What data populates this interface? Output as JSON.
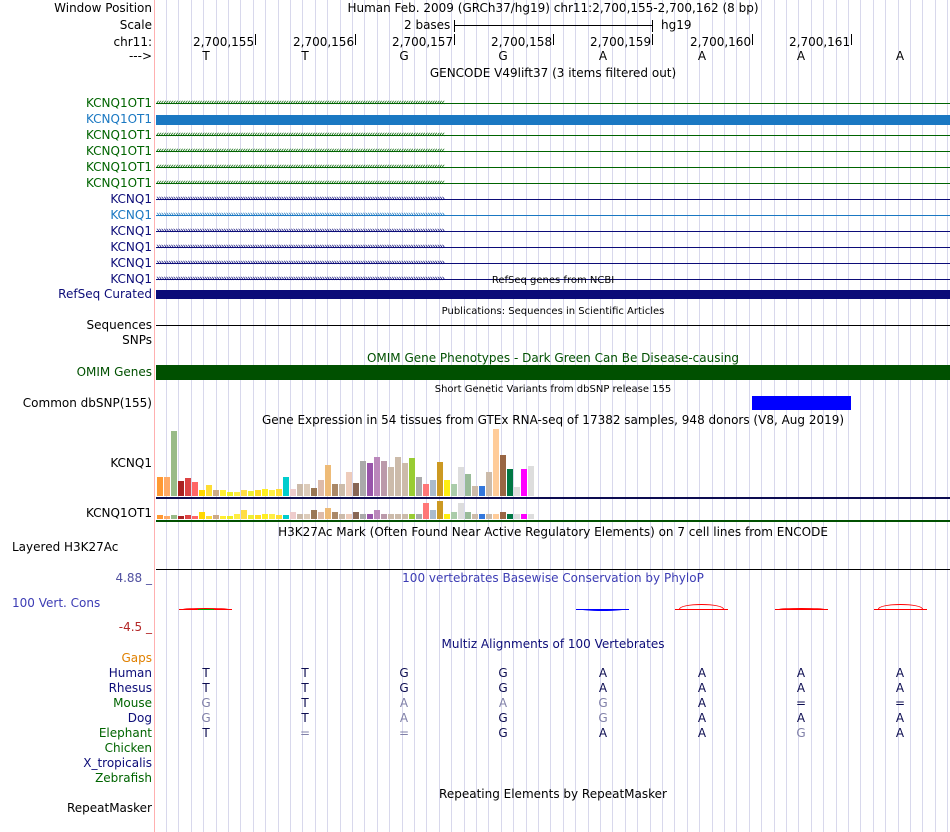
{
  "header": {
    "window_position_label": "Window Position",
    "window_position_value": "Human Feb. 2009 (GRCh37/hg19)   chr11:2,700,155-2,700,162 (8 bp)",
    "scale_label": "Scale",
    "scale_value": "2 bases",
    "assembly": "hg19",
    "chrom_label": "chr11:",
    "strand_label": "--->",
    "positions": [
      "2,700,155",
      "2,700,156",
      "2,700,157",
      "2,700,158",
      "2,700,159",
      "2,700,160",
      "2,700,161"
    ],
    "ref_bases": [
      "T",
      "T",
      "G",
      "G",
      "A",
      "A",
      "A",
      "A"
    ]
  },
  "gencode": {
    "title": "GENCODE V49lift37 (3 items filtered out)",
    "tracks": [
      {
        "name": "KCNQ1OT1",
        "strand": "minus",
        "style": "arrows",
        "color": "#006400"
      },
      {
        "name": "KCNQ1OT1",
        "strand": "minus",
        "style": "block",
        "color": "#1a78c2"
      },
      {
        "name": "KCNQ1OT1",
        "strand": "minus",
        "style": "arrows",
        "color": "#006400"
      },
      {
        "name": "KCNQ1OT1",
        "strand": "minus",
        "style": "arrows",
        "color": "#006400"
      },
      {
        "name": "KCNQ1OT1",
        "strand": "minus",
        "style": "arrows",
        "color": "#006400"
      },
      {
        "name": "KCNQ1OT1",
        "strand": "minus",
        "style": "arrows",
        "color": "#006400"
      },
      {
        "name": "KCNQ1",
        "strand": "plus",
        "style": "arrows",
        "color": "#0c0c78"
      },
      {
        "name": "KCNQ1",
        "strand": "plus",
        "style": "arrows",
        "color": "#1a78c2"
      },
      {
        "name": "KCNQ1",
        "strand": "plus",
        "style": "arrows",
        "color": "#0c0c78"
      },
      {
        "name": "KCNQ1",
        "strand": "plus",
        "style": "arrows",
        "color": "#0c0c78"
      },
      {
        "name": "KCNQ1",
        "strand": "plus",
        "style": "arrows",
        "color": "#0c0c78"
      },
      {
        "name": "KCNQ1",
        "strand": "plus",
        "style": "arrows",
        "color": "#0c0c78"
      }
    ]
  },
  "refseq": {
    "title": "RefSeq genes from NCBI",
    "label": "RefSeq Curated",
    "color": "#0c0c78"
  },
  "publications": {
    "title": "Publications: Sequences in Scientific Articles",
    "label": "Sequences"
  },
  "snps_label": "SNPs",
  "omim": {
    "title": "OMIM Gene Phenotypes - Dark Green Can Be Disease-causing",
    "label": "OMIM Genes",
    "color": "#005000"
  },
  "dbsnp": {
    "title": "Short Genetic Variants from dbSNP release 155",
    "label": "Common dbSNP(155)",
    "color": "#0000ff",
    "variant_base_index": 6
  },
  "gtex": {
    "title": "Gene Expression in 54 tissues from GTEx RNA-seq of 17382 samples, 948 donors (V8, Aug 2019)",
    "genes": [
      {
        "name": "KCNQ1",
        "values": [
          0.28,
          0.28,
          0.95,
          0.22,
          0.26,
          0.2,
          0.09,
          0.16,
          0.09,
          0.09,
          0.06,
          0.06,
          0.09,
          0.08,
          0.09,
          0.1,
          0.09,
          0.1,
          0.28,
          0.1,
          0.17,
          0.17,
          0.12,
          0.24,
          0.45,
          0.18,
          0.17,
          0.36,
          0.19,
          0.51,
          0.48,
          0.57,
          0.51,
          0.42,
          0.58,
          0.48,
          0.56,
          0.28,
          0.17,
          0.24,
          0.5,
          0.24,
          0.17,
          0.43,
          0.33,
          0.15,
          0.15,
          0.35,
          0.98,
          0.61,
          0.4,
          0.13,
          0.4,
          0.44
        ]
      },
      {
        "name": "KCNQ1OT1",
        "values": [
          0.2,
          0.15,
          0.2,
          0.15,
          0.2,
          0.15,
          0.4,
          0.15,
          0.2,
          0.15,
          0.15,
          0.3,
          0.5,
          0.2,
          0.2,
          0.3,
          0.3,
          0.2,
          0.2,
          0.4,
          0.3,
          0.3,
          0.5,
          0.4,
          0.6,
          0.4,
          0.3,
          0.3,
          0.4,
          0.3,
          0.3,
          0.5,
          0.3,
          0.3,
          0.3,
          0.3,
          0.3,
          0.3,
          0.9,
          0.5,
          1.0,
          0.3,
          0.4,
          0.9,
          0.4,
          0.3,
          0.3,
          0.3,
          0.3,
          0.4,
          0.3,
          0.3,
          0.3,
          0.3
        ]
      }
    ],
    "colors": [
      "#ff9933",
      "#ffaa66",
      "#99bb88",
      "#aa2222",
      "#dd4444",
      "#ff6666",
      "#ffd700",
      "#ffdd33",
      "#ccaa88",
      "#ffee33",
      "#eeee22",
      "#ffee44",
      "#ffdd44",
      "#eeee33",
      "#ffdd22",
      "#ffee22",
      "#ffee44",
      "#ffdd33",
      "#00cdcd",
      "#eecccc",
      "#ccbbaa",
      "#ddccbb",
      "#997755",
      "#ddbbaa",
      "#eebb77",
      "#aa8866",
      "#ccbbaa",
      "#eeccbb",
      "#886655",
      "#aaaaaa",
      "#9955aa",
      "#bb88bb",
      "#bb99aa",
      "#ccbbaa",
      "#ccbbaa",
      "#ccbbaa",
      "#99cc33",
      "#aaaaaa",
      "#ff7777",
      "#aabbcc",
      "#cc9922",
      "#ffee11",
      "#aaccaa",
      "#dddddd",
      "#99bb99",
      "#ccbbaa",
      "#3377dd",
      "#ccbbaa",
      "#ffcc99",
      "#996644",
      "#007744",
      "#dddddd",
      "#ff00ff",
      "#dddddd"
    ]
  },
  "h3k27ac": {
    "title": "H3K27Ac Mark (Often Found Near Active Regulatory Elements) on 7 cell lines from ENCODE",
    "label": "Layered H3K27Ac"
  },
  "conservation": {
    "title": "100 vertebrates Basewise Conservation by PhyloP",
    "label": "100 Vert. Cons",
    "max_label": "4.88 _",
    "min_label": "-4.5 _",
    "scores": [
      0.1,
      0,
      0,
      0,
      -0.3,
      1.0,
      0.15,
      1.0
    ],
    "pos_color": "#ff0000",
    "neg_color": "#0000ff"
  },
  "multiz": {
    "title": "Multiz Alignments of 100 Vertebrates",
    "gaps_label": "Gaps",
    "species": [
      {
        "name": "Human",
        "color": "#0c0c78",
        "bases": [
          "T",
          "T",
          "G",
          "G",
          "A",
          "A",
          "A",
          "A"
        ],
        "match": [
          true,
          true,
          true,
          true,
          true,
          true,
          true,
          true
        ]
      },
      {
        "name": "Rhesus",
        "color": "#0c0c78",
        "bases": [
          "T",
          "T",
          "G",
          "G",
          "A",
          "A",
          "A",
          "A"
        ],
        "match": [
          true,
          true,
          true,
          true,
          true,
          true,
          true,
          true
        ]
      },
      {
        "name": "Mouse",
        "color": "#006400",
        "bases": [
          "G",
          "T",
          "A",
          "A",
          "G",
          "A",
          "=",
          "="
        ],
        "match": [
          false,
          true,
          false,
          false,
          false,
          true,
          true,
          true
        ]
      },
      {
        "name": "Dog",
        "color": "#0c0c78",
        "bases": [
          "G",
          "T",
          "A",
          "G",
          "G",
          "A",
          "A",
          "A"
        ],
        "match": [
          false,
          true,
          false,
          true,
          false,
          true,
          true,
          true
        ]
      },
      {
        "name": "Elephant",
        "color": "#006400",
        "bases": [
          "T",
          "=",
          "=",
          "G",
          "A",
          "A",
          "G",
          "A"
        ],
        "match": [
          true,
          false,
          false,
          true,
          true,
          true,
          false,
          true
        ]
      },
      {
        "name": "Chicken",
        "color": "#006400",
        "bases": [
          "",
          "",
          "",
          "",
          "",
          "",
          "",
          ""
        ],
        "match": []
      },
      {
        "name": "X_tropicalis",
        "color": "#0c0c78",
        "bases": [
          "",
          "",
          "",
          "",
          "",
          "",
          "",
          ""
        ],
        "match": []
      },
      {
        "name": "Zebrafish",
        "color": "#006400",
        "bases": [
          "",
          "",
          "",
          "",
          "",
          "",
          "",
          ""
        ],
        "match": []
      }
    ]
  },
  "repeatmasker": {
    "title": "Repeating Elements by RepeatMasker",
    "label": "RepeatMasker"
  }
}
